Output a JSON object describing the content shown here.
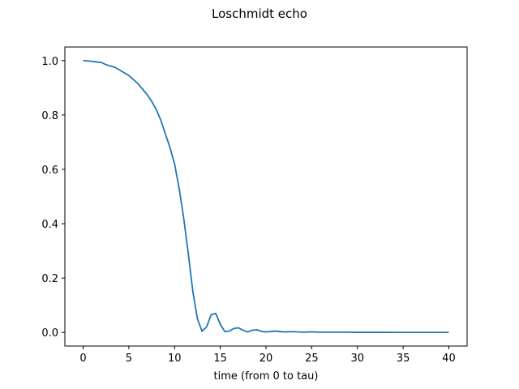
{
  "chart_data": {
    "type": "line",
    "title": "Loschmidt echo",
    "xlabel": "time (from 0 to tau)",
    "ylabel": "",
    "xlim": [
      -2,
      42
    ],
    "ylim": [
      -0.05,
      1.05
    ],
    "xticks": [
      0,
      5,
      10,
      15,
      20,
      25,
      30,
      35,
      40
    ],
    "yticks": [
      0.0,
      0.2,
      0.4,
      0.6,
      0.8,
      1.0
    ],
    "xtick_labels": [
      "0",
      "5",
      "10",
      "15",
      "20",
      "25",
      "30",
      "35",
      "40"
    ],
    "ytick_labels": [
      "0.0",
      "0.2",
      "0.4",
      "0.6",
      "0.8",
      "1.0"
    ],
    "grid": false,
    "series": [
      {
        "color": "#1f77b4",
        "x": [
          0,
          0.5,
          1,
          1.5,
          2,
          2.5,
          3,
          3.5,
          4,
          4.5,
          5,
          5.5,
          6,
          6.5,
          7,
          7.5,
          8,
          8.5,
          9,
          9.5,
          10,
          10.5,
          11,
          11.5,
          12,
          12.5,
          13,
          13.5,
          14,
          14.5,
          15,
          15.5,
          16,
          16.5,
          17,
          17.5,
          18,
          18.5,
          19,
          19.5,
          20,
          21,
          22,
          23,
          24,
          25,
          26,
          27,
          28,
          29,
          30,
          32,
          34,
          36,
          38,
          40
        ],
        "y": [
          1.0,
          0.999,
          0.997,
          0.995,
          0.993,
          0.985,
          0.98,
          0.975,
          0.965,
          0.955,
          0.945,
          0.93,
          0.915,
          0.895,
          0.875,
          0.85,
          0.82,
          0.78,
          0.73,
          0.68,
          0.62,
          0.53,
          0.42,
          0.29,
          0.15,
          0.05,
          0.005,
          0.02,
          0.065,
          0.07,
          0.03,
          0.003,
          0.005,
          0.015,
          0.017,
          0.008,
          0.002,
          0.008,
          0.01,
          0.004,
          0.002,
          0.005,
          0.002,
          0.003,
          0.001,
          0.002,
          0.001,
          0.001,
          0.001,
          0.001,
          0.0005,
          0.0005,
          0.0003,
          0.0003,
          0.0002,
          0.0002
        ]
      }
    ]
  }
}
